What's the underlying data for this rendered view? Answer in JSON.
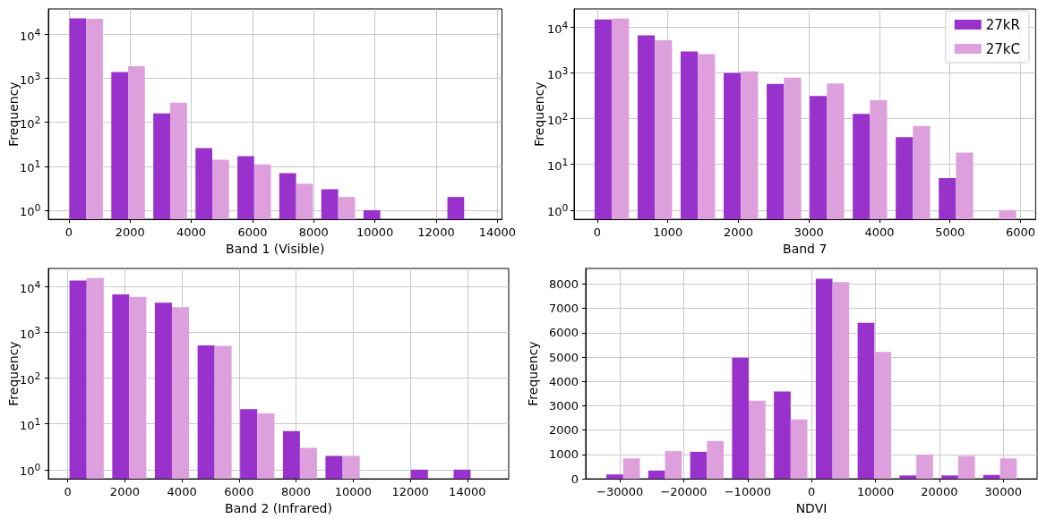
{
  "chart_data": [
    {
      "type": "histogram",
      "xlabel": "Band 1 (Visible)",
      "ylabel": "Frequency",
      "log": true,
      "grid": true,
      "legend": false,
      "bins": [
        -120,
        1250,
        2620,
        4000,
        5370,
        6740,
        8110,
        9490,
        10860,
        12230,
        13600
      ],
      "series": [
        {
          "color": "#9932cc",
          "values": [
            23200,
            1400,
            160,
            26,
            17,
            7,
            3,
            1,
            null,
            2
          ]
        },
        {
          "color": "#dda0dd",
          "values": [
            22800,
            1900,
            280,
            14,
            11,
            4,
            2,
            null,
            null,
            null
          ]
        }
      ],
      "xlim": [
        -670,
        14150
      ],
      "xticks": [
        0,
        2000,
        4000,
        6000,
        8000,
        10000,
        12000,
        14000
      ],
      "ylim": [
        0.62,
        38000
      ],
      "yticks": [
        {
          "value": 1,
          "label": "10$^{0}$"
        },
        {
          "value": 10,
          "label": "10$^{1}$"
        },
        {
          "value": 100,
          "label": "10$^{2}$"
        },
        {
          "value": 1000,
          "label": "10$^{3}$"
        },
        {
          "value": 10000,
          "label": "10$^{4}$"
        }
      ]
    },
    {
      "type": "histogram",
      "xlabel": "Band 7",
      "ylabel": "Frequency",
      "log": true,
      "grid": true,
      "legend": "top right",
      "bins": [
        -100,
        510,
        1120,
        1730,
        2340,
        2950,
        3560,
        4170,
        4780,
        5390,
        6000
      ],
      "series": [
        {
          "name": "27kR",
          "color": "#9932cc",
          "values": [
            14500,
            6500,
            2900,
            990,
            570,
            310,
            126,
            39,
            5,
            null
          ]
        },
        {
          "name": "27kC",
          "color": "#dda0dd",
          "values": [
            15100,
            5100,
            2550,
            1070,
            780,
            580,
            250,
            69,
            18,
            1
          ]
        }
      ],
      "xlim": [
        -330,
        6215
      ],
      "xticks": [
        0,
        1000,
        2000,
        3000,
        4000,
        5000,
        6000
      ],
      "ylim": [
        0.63,
        24600
      ],
      "yticks": [
        {
          "value": 1,
          "label": "10$^{0}$"
        },
        {
          "value": 10,
          "label": "10$^{1}$"
        },
        {
          "value": 100,
          "label": "10$^{2}$"
        },
        {
          "value": 1000,
          "label": "10$^{3}$"
        },
        {
          "value": 10000,
          "label": "10$^{4}$"
        }
      ]
    },
    {
      "type": "histogram",
      "xlabel": "Band 2 (Infrared)",
      "ylabel": "Frequency",
      "log": true,
      "grid": true,
      "legend": false,
      "bins": [
        -90,
        1410,
        2900,
        4400,
        5890,
        7390,
        8880,
        10380,
        11870,
        13370,
        14860
      ],
      "series": [
        {
          "color": "#9932cc",
          "values": [
            13600,
            6800,
            4500,
            520,
            21,
            7,
            2,
            null,
            1,
            1
          ]
        },
        {
          "color": "#dda0dd",
          "values": [
            15500,
            6000,
            3560,
            510,
            17,
            3,
            2,
            null,
            null,
            null
          ]
        }
      ],
      "xlim": [
        -680,
        15450
      ],
      "xticks": [
        0,
        2000,
        4000,
        6000,
        8000,
        10000,
        12000,
        14000
      ],
      "ylim": [
        0.63,
        25100
      ],
      "yticks": [
        {
          "value": 1,
          "label": "10$^{0}$"
        },
        {
          "value": 10,
          "label": "10$^{1}$"
        },
        {
          "value": 100,
          "label": "10$^{2}$"
        },
        {
          "value": 1000,
          "label": "10$^{3}$"
        },
        {
          "value": 10000,
          "label": "10$^{4}$"
        }
      ]
    },
    {
      "type": "histogram",
      "xlabel": "NDVI",
      "ylabel": "Frequency",
      "grid": true,
      "legend": false,
      "bins": [
        -32768,
        -26215,
        -19661,
        -13108,
        -6554,
        0,
        6553,
        13107,
        19660,
        26214,
        32767
      ],
      "series": [
        {
          "color": "#9932cc",
          "values": [
            180,
            340,
            1110,
            4970,
            3590,
            8220,
            6410,
            140,
            140,
            160
          ]
        },
        {
          "color": "#dda0dd",
          "values": [
            840,
            1140,
            1550,
            3210,
            2440,
            8080,
            5210,
            990,
            940,
            840
          ]
        }
      ],
      "xlim": [
        -35350,
        35290
      ],
      "xticks": [
        {
          "value": -30000,
          "label": "−30000"
        },
        {
          "value": -20000,
          "label": "−20000"
        },
        {
          "value": -10000,
          "label": "−10000"
        },
        0,
        10000,
        20000,
        30000
      ],
      "ylim": [
        0,
        8640
      ],
      "yticks": [
        0,
        1000,
        2000,
        3000,
        4000,
        5000,
        6000,
        7000,
        8000
      ]
    }
  ]
}
